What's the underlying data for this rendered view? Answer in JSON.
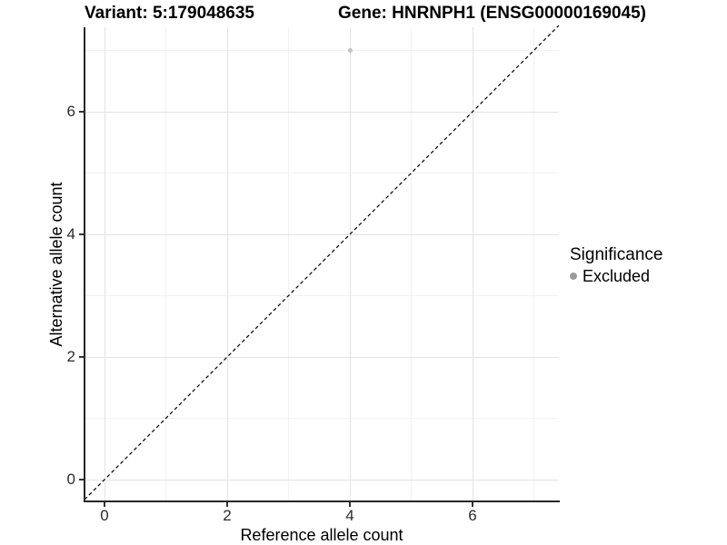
{
  "titles": {
    "variant": "Variant: 5:179048635",
    "gene": "Gene: HNRNPH1 (ENSG00000169045)"
  },
  "axes": {
    "x_label": "Reference allele count",
    "y_label": "Alternative allele count"
  },
  "legend": {
    "title": "Significance",
    "items": [
      {
        "label": "Excluded",
        "color": "#9b9b9b"
      }
    ]
  },
  "chart_data": {
    "type": "scatter",
    "title": "Variant: 5:179048635 — Gene: HNRNPH1 (ENSG00000169045)",
    "xlabel": "Reference allele count",
    "ylabel": "Alternative allele count",
    "xlim": [
      -0.33,
      7.41
    ],
    "ylim": [
      -0.33,
      7.41
    ],
    "x_ticks": [
      0,
      2,
      4,
      6
    ],
    "y_ticks": [
      0,
      2,
      4,
      6
    ],
    "x_minor_ticks": [
      1,
      3,
      5,
      7
    ],
    "y_minor_ticks": [
      1,
      3,
      5,
      7
    ],
    "grid": "major+minor",
    "legend_position": "right",
    "series": [
      {
        "name": "Excluded",
        "color": "#c2c2c2",
        "points": [
          {
            "x": 4,
            "y": 7
          }
        ]
      }
    ],
    "reference_line": {
      "equation": "y = x",
      "style": "dashed",
      "color": "#000000"
    }
  },
  "colors": {
    "background": "#ffffff",
    "grid_major": "#e3e3e3",
    "grid_minor": "#f1f1f1",
    "axis_line": "#262626",
    "tick_label": "#2b2b2b",
    "point": "#c2c2c2",
    "legend_dot": "#9b9b9b",
    "dashed_line": "#000000"
  }
}
